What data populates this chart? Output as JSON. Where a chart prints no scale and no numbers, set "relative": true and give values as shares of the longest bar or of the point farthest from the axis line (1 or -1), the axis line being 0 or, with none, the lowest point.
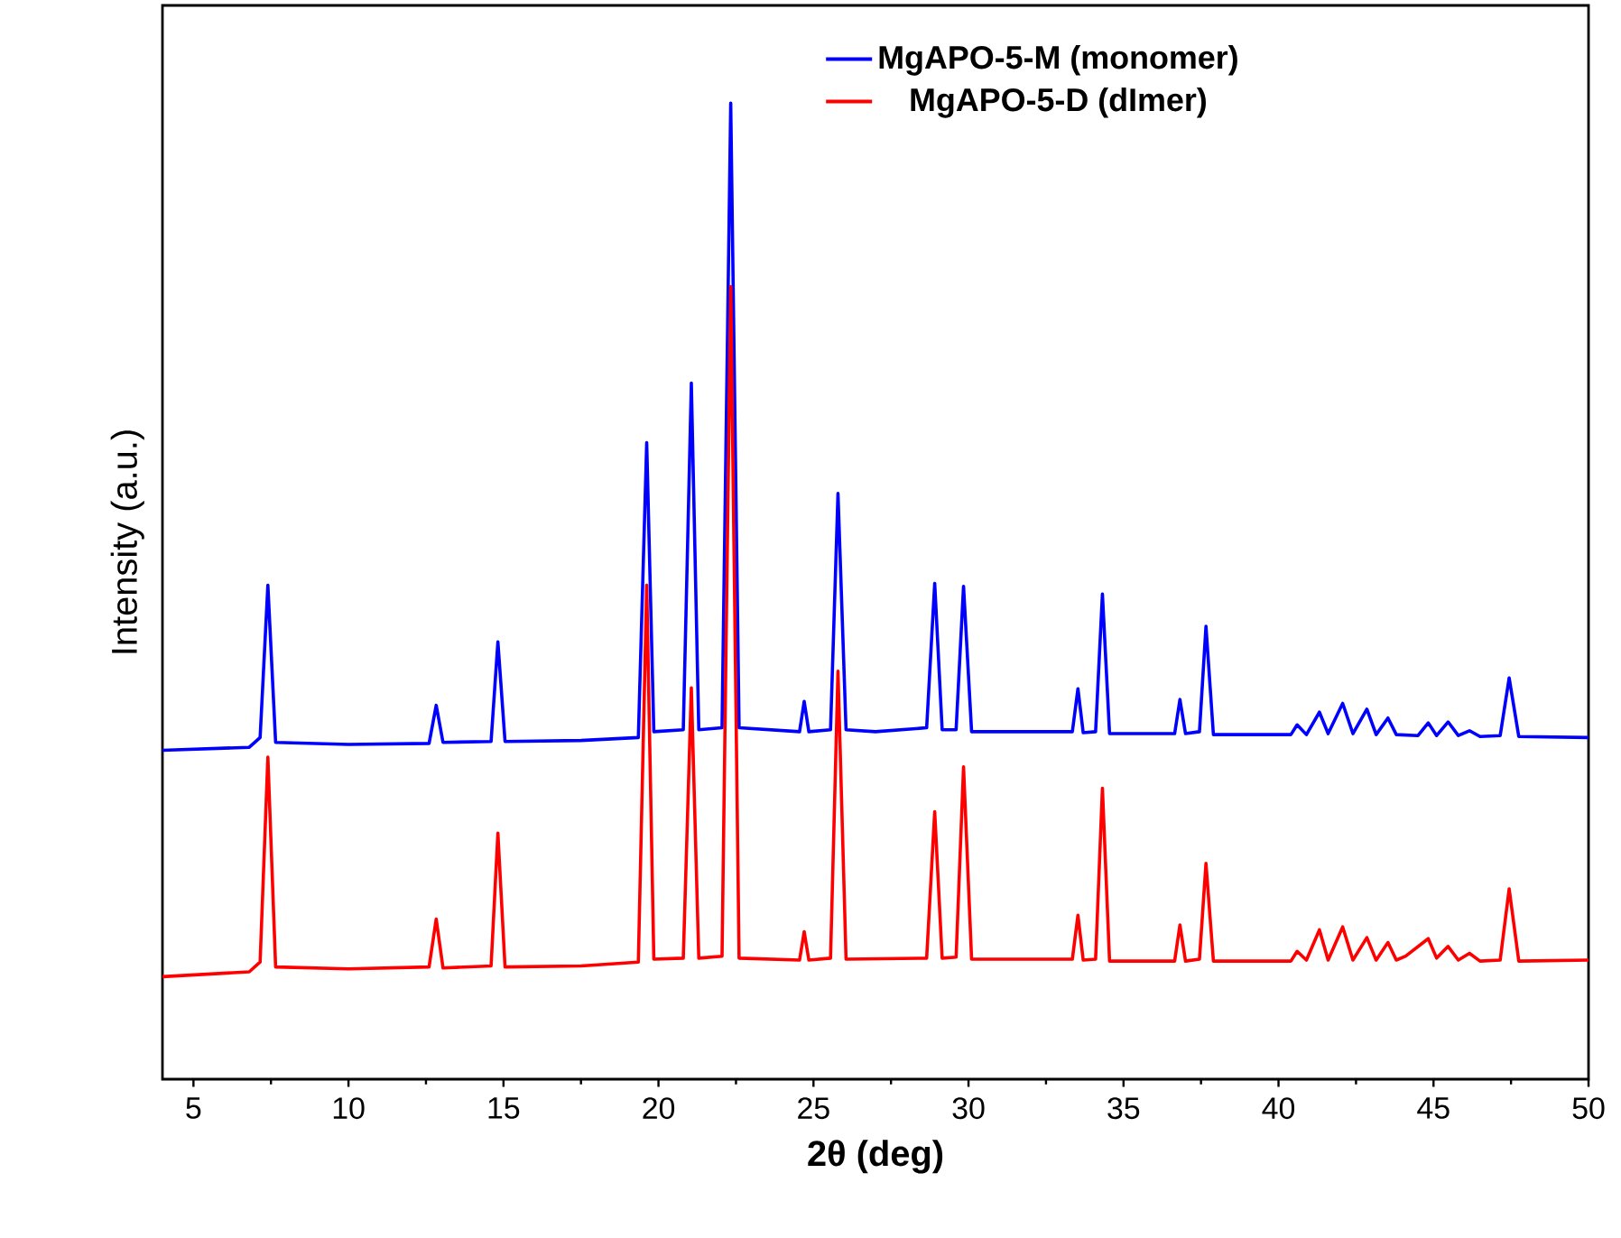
{
  "chart_data": {
    "type": "line",
    "xlabel": "2θ (deg)",
    "ylabel": "Intensity (a.u.)",
    "relative": true,
    "xlim": [
      4,
      50
    ],
    "xticks": [
      5,
      10,
      15,
      20,
      25,
      30,
      35,
      40,
      45,
      50
    ],
    "legend": "top right",
    "marker": "none",
    "line_style": "solid",
    "series": [
      {
        "name": "MgAPO-5-M (monomer)",
        "color": "#0000ff",
        "x": [
          4.0,
          6.8,
          7.15,
          7.4,
          7.65,
          10,
          12.6,
          12.83,
          13.05,
          14.6,
          14.82,
          15.05,
          17.5,
          19.35,
          19.62,
          19.85,
          20.8,
          21.06,
          21.3,
          22.05,
          22.33,
          22.6,
          24.55,
          24.7,
          24.85,
          25.55,
          25.79,
          26.05,
          27,
          28.65,
          28.91,
          29.15,
          29.6,
          29.84,
          30.1,
          33.35,
          33.53,
          33.7,
          34.1,
          34.32,
          34.55,
          36.65,
          36.82,
          37.0,
          37.45,
          37.66,
          37.9,
          40.4,
          40.6,
          40.9,
          41.32,
          41.6,
          42.07,
          42.4,
          42.85,
          43.15,
          43.53,
          43.8,
          44.5,
          44.83,
          45.1,
          45.47,
          45.8,
          46.16,
          46.5,
          47.15,
          47.44,
          47.75,
          50
        ],
        "values": [
          0.337,
          0.34,
          0.35,
          0.506,
          0.345,
          0.343,
          0.344,
          0.383,
          0.345,
          0.346,
          0.448,
          0.346,
          0.347,
          0.35,
          0.652,
          0.356,
          0.358,
          0.713,
          0.358,
          0.36,
          1.0,
          0.36,
          0.356,
          0.387,
          0.356,
          0.358,
          0.6,
          0.358,
          0.356,
          0.36,
          0.508,
          0.358,
          0.358,
          0.505,
          0.356,
          0.356,
          0.4,
          0.355,
          0.356,
          0.497,
          0.354,
          0.354,
          0.389,
          0.354,
          0.356,
          0.464,
          0.353,
          0.353,
          0.363,
          0.353,
          0.376,
          0.354,
          0.385,
          0.354,
          0.379,
          0.353,
          0.37,
          0.353,
          0.352,
          0.365,
          0.352,
          0.366,
          0.352,
          0.357,
          0.351,
          0.352,
          0.411,
          0.351,
          0.35
        ]
      },
      {
        "name": "MgAPO-5-D (dImer)",
        "color": "#ff0000",
        "x": [
          4.0,
          6.8,
          7.15,
          7.4,
          7.65,
          10,
          12.6,
          12.83,
          13.05,
          14.6,
          14.82,
          15.05,
          17.5,
          19.35,
          19.62,
          19.85,
          20.8,
          21.06,
          21.3,
          22.05,
          22.33,
          22.6,
          24.55,
          24.7,
          24.85,
          25.55,
          25.79,
          26.05,
          28.65,
          28.91,
          29.15,
          29.6,
          29.84,
          30.1,
          33.35,
          33.53,
          33.7,
          34.1,
          34.32,
          34.55,
          36.65,
          36.82,
          37.0,
          37.45,
          37.66,
          37.9,
          40.4,
          40.6,
          40.9,
          41.32,
          41.6,
          42.07,
          42.4,
          42.85,
          43.15,
          43.53,
          43.8,
          44.1,
          44.83,
          45.1,
          45.47,
          45.8,
          46.16,
          46.5,
          47.15,
          47.44,
          47.75,
          50
        ],
        "values": [
          0.105,
          0.11,
          0.12,
          0.33,
          0.115,
          0.113,
          0.115,
          0.164,
          0.114,
          0.116,
          0.252,
          0.115,
          0.116,
          0.12,
          0.506,
          0.123,
          0.124,
          0.401,
          0.124,
          0.126,
          0.812,
          0.124,
          0.122,
          0.151,
          0.122,
          0.124,
          0.418,
          0.123,
          0.124,
          0.274,
          0.124,
          0.125,
          0.32,
          0.123,
          0.123,
          0.168,
          0.122,
          0.123,
          0.298,
          0.121,
          0.121,
          0.158,
          0.121,
          0.123,
          0.221,
          0.121,
          0.121,
          0.131,
          0.122,
          0.153,
          0.122,
          0.156,
          0.122,
          0.145,
          0.122,
          0.14,
          0.122,
          0.126,
          0.144,
          0.124,
          0.136,
          0.122,
          0.129,
          0.121,
          0.122,
          0.195,
          0.121,
          0.122
        ]
      }
    ]
  }
}
